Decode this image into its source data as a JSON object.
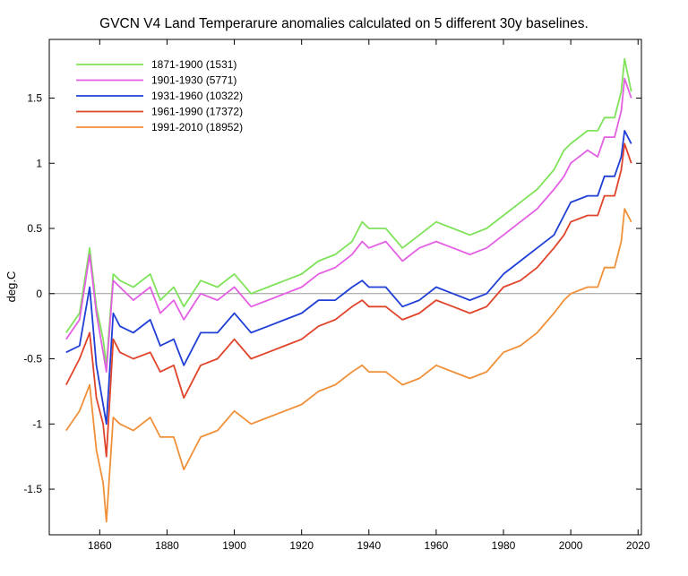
{
  "chart_data": {
    "type": "line",
    "title": "GVCN V4 Land Temperarure anomalies calculated on 5 different 30y baselines.",
    "xlabel": "",
    "ylabel": "deg.C",
    "xlim": [
      1845,
      2021
    ],
    "ylim": [
      -1.85,
      1.95
    ],
    "x_ticks": [
      1860,
      1880,
      1900,
      1920,
      1940,
      1960,
      1980,
      2000,
      2020
    ],
    "y_ticks": [
      -1.5,
      -1,
      -0.5,
      0,
      0.5,
      1,
      1.5
    ],
    "y_tick_labels": [
      "-1.5",
      "-1",
      "-0.5",
      "0",
      "0.5",
      "1",
      "1.5"
    ],
    "zero_line": true,
    "grid": false,
    "legend_position": "top-left",
    "x": [
      1850,
      1854,
      1857,
      1859,
      1861,
      1862,
      1864,
      1866,
      1870,
      1875,
      1878,
      1882,
      1885,
      1890,
      1895,
      1900,
      1905,
      1910,
      1915,
      1920,
      1925,
      1930,
      1935,
      1938,
      1940,
      1945,
      1950,
      1955,
      1960,
      1965,
      1970,
      1975,
      1980,
      1985,
      1990,
      1995,
      1998,
      2000,
      2005,
      2008,
      2010,
      2013,
      2015,
      2016,
      2018
    ],
    "series": [
      {
        "name": "1871-1900 (1531)",
        "color": "#7fe35a",
        "values": [
          -0.3,
          -0.15,
          0.35,
          -0.1,
          -0.35,
          -0.55,
          0.15,
          0.1,
          0.05,
          0.15,
          -0.05,
          0.05,
          -0.1,
          0.1,
          0.05,
          0.15,
          0.0,
          0.05,
          0.1,
          0.15,
          0.25,
          0.3,
          0.4,
          0.55,
          0.5,
          0.5,
          0.35,
          0.45,
          0.55,
          0.5,
          0.45,
          0.5,
          0.6,
          0.7,
          0.8,
          0.95,
          1.1,
          1.15,
          1.25,
          1.25,
          1.35,
          1.35,
          1.55,
          1.8,
          1.55
        ]
      },
      {
        "name": "1901-1930 (5771)",
        "color": "#e35fe3",
        "values": [
          -0.35,
          -0.2,
          0.3,
          -0.15,
          -0.45,
          -0.6,
          0.1,
          0.05,
          -0.05,
          0.05,
          -0.15,
          -0.05,
          -0.2,
          0.0,
          -0.05,
          0.05,
          -0.1,
          -0.05,
          0.0,
          0.05,
          0.15,
          0.2,
          0.3,
          0.4,
          0.35,
          0.4,
          0.25,
          0.35,
          0.4,
          0.35,
          0.3,
          0.35,
          0.45,
          0.55,
          0.65,
          0.8,
          0.9,
          1.0,
          1.1,
          1.05,
          1.2,
          1.2,
          1.4,
          1.65,
          1.5
        ]
      },
      {
        "name": "1931-1960 (10322)",
        "color": "#1f3fd6",
        "values": [
          -0.45,
          -0.4,
          0.05,
          -0.55,
          -0.85,
          -1.0,
          -0.15,
          -0.25,
          -0.3,
          -0.2,
          -0.4,
          -0.35,
          -0.55,
          -0.3,
          -0.3,
          -0.15,
          -0.3,
          -0.25,
          -0.2,
          -0.15,
          -0.05,
          -0.05,
          0.05,
          0.1,
          0.05,
          0.05,
          -0.1,
          -0.05,
          0.05,
          0.0,
          -0.05,
          0.0,
          0.15,
          0.25,
          0.35,
          0.45,
          0.6,
          0.7,
          0.75,
          0.75,
          0.9,
          0.9,
          1.05,
          1.25,
          1.15
        ]
      },
      {
        "name": "1961-1990 (17372)",
        "color": "#e0442a",
        "values": [
          -0.7,
          -0.5,
          -0.3,
          -0.8,
          -1.0,
          -1.25,
          -0.35,
          -0.45,
          -0.5,
          -0.45,
          -0.6,
          -0.55,
          -0.8,
          -0.55,
          -0.5,
          -0.35,
          -0.5,
          -0.45,
          -0.4,
          -0.35,
          -0.25,
          -0.2,
          -0.1,
          -0.05,
          -0.1,
          -0.1,
          -0.2,
          -0.15,
          -0.05,
          -0.1,
          -0.15,
          -0.1,
          0.05,
          0.1,
          0.2,
          0.35,
          0.45,
          0.55,
          0.6,
          0.6,
          0.75,
          0.75,
          0.95,
          1.15,
          1.0
        ]
      },
      {
        "name": "1991-2010 (18952)",
        "color": "#f0913a",
        "values": [
          -1.05,
          -0.9,
          -0.7,
          -1.2,
          -1.45,
          -1.75,
          -0.95,
          -1.0,
          -1.05,
          -0.95,
          -1.1,
          -1.1,
          -1.35,
          -1.1,
          -1.05,
          -0.9,
          -1.0,
          -0.95,
          -0.9,
          -0.85,
          -0.75,
          -0.7,
          -0.6,
          -0.55,
          -0.6,
          -0.6,
          -0.7,
          -0.65,
          -0.55,
          -0.6,
          -0.65,
          -0.6,
          -0.45,
          -0.4,
          -0.3,
          -0.15,
          -0.05,
          0.0,
          0.05,
          0.05,
          0.2,
          0.2,
          0.4,
          0.65,
          0.55
        ]
      }
    ]
  }
}
